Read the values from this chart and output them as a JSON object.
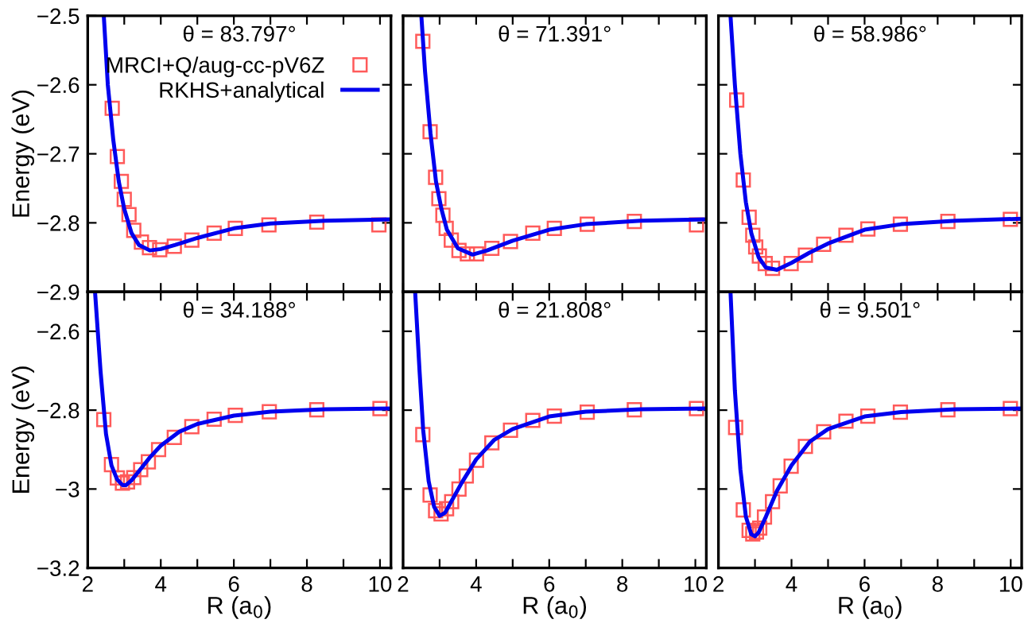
{
  "chart_data": [
    {
      "type": "line",
      "title": "θ = 83.797°",
      "ylabel": "Energy (eV)",
      "xlim": [
        2,
        10.3
      ],
      "ylim": [
        -2.9,
        -2.5
      ],
      "xticks": [
        2,
        {
          "value": 3,
          "label": null
        },
        4,
        {
          "value": 5,
          "label": null
        },
        6,
        {
          "value": 7,
          "label": null
        },
        8,
        {
          "value": 9,
          "label": null
        },
        10
      ],
      "yticks": [
        -2.9,
        -2.8,
        -2.7,
        -2.6,
        -2.5
      ],
      "tick_labels": "y",
      "legend": "top right",
      "grid": false,
      "series": [
        {
          "name": "MRCI+Q/aug-cc-pV6Z",
          "type": "scatter",
          "marker": "square",
          "color": "#ff5a5a",
          "x": [
            2.67,
            2.81,
            2.92,
            3.0,
            3.13,
            3.26,
            3.47,
            3.69,
            3.97,
            4.37,
            4.85,
            5.46,
            6.04,
            6.96,
            8.27,
            9.97
          ],
          "values": [
            -2.634,
            -2.704,
            -2.74,
            -2.766,
            -2.788,
            -2.811,
            -2.828,
            -2.836,
            -2.839,
            -2.834,
            -2.825,
            -2.815,
            -2.808,
            -2.803,
            -2.799,
            -2.803
          ]
        },
        {
          "name": "RKHS+analytical",
          "type": "line",
          "color": "#0000ee",
          "x": [
            2.44,
            2.55,
            2.7,
            2.85,
            3.0,
            3.2,
            3.4,
            3.7,
            4.0,
            4.4,
            5.0,
            6.0,
            7.0,
            8.5,
            10.3
          ],
          "values": [
            -2.5,
            -2.6,
            -2.68,
            -2.74,
            -2.78,
            -2.815,
            -2.832,
            -2.84,
            -2.838,
            -2.832,
            -2.822,
            -2.808,
            -2.801,
            -2.797,
            -2.795
          ]
        }
      ]
    },
    {
      "type": "line",
      "title": "θ = 71.391°",
      "xlim": [
        2,
        10.3
      ],
      "ylim": [
        -2.9,
        -2.5
      ],
      "xticks": [
        2,
        {
          "value": 3,
          "label": null
        },
        4,
        {
          "value": 5,
          "label": null
        },
        6,
        {
          "value": 7,
          "label": null
        },
        8,
        {
          "value": 9,
          "label": null
        },
        10
      ],
      "yticks": [
        -2.9,
        -2.8,
        -2.7,
        -2.6,
        -2.5
      ],
      "tick_labels": false,
      "grid": false,
      "series": [
        {
          "type": "scatter",
          "marker": "square",
          "color": "#ff5a5a",
          "x": [
            2.54,
            2.74,
            2.89,
            2.98,
            3.09,
            3.18,
            3.32,
            3.53,
            3.76,
            4.01,
            4.43,
            4.94,
            5.55,
            6.14,
            7.04,
            8.33,
            10.03
          ],
          "values": [
            -2.537,
            -2.668,
            -2.734,
            -2.765,
            -2.789,
            -2.808,
            -2.825,
            -2.84,
            -2.845,
            -2.845,
            -2.837,
            -2.827,
            -2.815,
            -2.808,
            -2.802,
            -2.798,
            -2.803
          ]
        },
        {
          "type": "line",
          "color": "#0000ee",
          "x": [
            2.5,
            2.6,
            2.75,
            2.9,
            3.05,
            3.2,
            3.5,
            3.9,
            4.3,
            5.0,
            6.0,
            7.0,
            8.5,
            10.3
          ],
          "values": [
            -2.5,
            -2.58,
            -2.67,
            -2.74,
            -2.78,
            -2.81,
            -2.837,
            -2.846,
            -2.84,
            -2.826,
            -2.81,
            -2.802,
            -2.797,
            -2.795
          ]
        }
      ]
    },
    {
      "type": "line",
      "title": "θ = 58.986°",
      "xlim": [
        2,
        10.3
      ],
      "ylim": [
        -2.9,
        -2.5
      ],
      "xticks": [
        2,
        {
          "value": 3,
          "label": null
        },
        4,
        {
          "value": 5,
          "label": null
        },
        6,
        {
          "value": 7,
          "label": null
        },
        8,
        {
          "value": 9,
          "label": null
        },
        10
      ],
      "yticks": [
        -2.9,
        -2.8,
        -2.7,
        -2.6,
        -2.5
      ],
      "tick_labels": false,
      "grid": false,
      "series": [
        {
          "type": "scatter",
          "marker": "square",
          "color": "#ff5a5a",
          "x": [
            2.5,
            2.68,
            2.84,
            2.94,
            3.02,
            3.12,
            3.28,
            3.48,
            3.99,
            4.38,
            4.88,
            5.49,
            6.09,
            6.98,
            8.28,
            9.99
          ],
          "values": [
            -2.622,
            -2.738,
            -2.792,
            -2.818,
            -2.835,
            -2.848,
            -2.859,
            -2.866,
            -2.859,
            -2.847,
            -2.831,
            -2.818,
            -2.809,
            -2.802,
            -2.798,
            -2.795
          ]
        },
        {
          "type": "line",
          "color": "#0000ee",
          "x": [
            2.33,
            2.45,
            2.6,
            2.75,
            2.9,
            3.1,
            3.3,
            3.6,
            4.0,
            4.5,
            5.0,
            6.0,
            7.0,
            8.5,
            10.3
          ],
          "values": [
            -2.5,
            -2.6,
            -2.7,
            -2.77,
            -2.815,
            -2.85,
            -2.865,
            -2.868,
            -2.858,
            -2.843,
            -2.83,
            -2.81,
            -2.802,
            -2.797,
            -2.794
          ]
        }
      ]
    },
    {
      "type": "line",
      "title": "θ = 34.188°",
      "xlabel": "R (a$_{0}$)",
      "ylabel": "Energy (eV)",
      "xlim": [
        2,
        10.3
      ],
      "ylim": [
        -3.2,
        -2.5
      ],
      "xticks": [
        2,
        {
          "value": 3,
          "label": null
        },
        4,
        {
          "value": 5,
          "label": null
        },
        6,
        {
          "value": 7,
          "label": null
        },
        8,
        {
          "value": 9,
          "label": null
        },
        10
      ],
      "yticks": [
        -3.2,
        -3,
        -2.8,
        -2.6
      ],
      "grid": false,
      "series": [
        {
          "type": "scatter",
          "marker": "square",
          "color": "#ff5a5a",
          "x": [
            2.44,
            2.65,
            2.81,
            2.95,
            3.09,
            3.26,
            3.45,
            3.66,
            3.94,
            4.37,
            4.85,
            5.46,
            6.04,
            6.97,
            8.27,
            10.0
          ],
          "values": [
            -2.824,
            -2.938,
            -2.972,
            -2.985,
            -2.982,
            -2.971,
            -2.951,
            -2.931,
            -2.9,
            -2.869,
            -2.842,
            -2.823,
            -2.813,
            -2.804,
            -2.799,
            -2.796
          ]
        },
        {
          "type": "line",
          "color": "#0000ee",
          "x": [
            2.2,
            2.35,
            2.5,
            2.65,
            2.8,
            2.95,
            3.05,
            3.2,
            3.4,
            3.7,
            4.0,
            4.5,
            5.0,
            6.0,
            7.0,
            8.5,
            10.3
          ],
          "values": [
            -2.5,
            -2.7,
            -2.86,
            -2.94,
            -2.975,
            -2.99,
            -2.99,
            -2.978,
            -2.955,
            -2.92,
            -2.89,
            -2.855,
            -2.835,
            -2.814,
            -2.804,
            -2.798,
            -2.796
          ]
        }
      ]
    },
    {
      "type": "line",
      "title": "θ = 21.808°",
      "xlabel": "R (a$_{0}$)",
      "xlim": [
        2,
        10.3
      ],
      "ylim": [
        -3.2,
        -2.5
      ],
      "xticks": [
        2,
        {
          "value": 3,
          "label": null
        },
        4,
        {
          "value": 5,
          "label": null
        },
        6,
        {
          "value": 7,
          "label": null
        },
        8,
        {
          "value": 9,
          "label": null
        },
        10
      ],
      "yticks": [
        -3.2,
        -3,
        -2.8,
        -2.6
      ],
      "tick_labels": "x",
      "grid": false,
      "series": [
        {
          "type": "scatter",
          "marker": "square",
          "color": "#ff5a5a",
          "x": [
            2.54,
            2.74,
            2.89,
            3.04,
            3.19,
            3.33,
            3.53,
            3.73,
            4.01,
            4.43,
            4.94,
            5.55,
            6.14,
            7.04,
            8.33,
            10.03
          ],
          "values": [
            -2.862,
            -3.015,
            -3.055,
            -3.063,
            -3.05,
            -3.032,
            -3.0,
            -2.967,
            -2.927,
            -2.883,
            -2.851,
            -2.826,
            -2.815,
            -2.805,
            -2.799,
            -2.796
          ]
        },
        {
          "type": "line",
          "color": "#0000ee",
          "x": [
            2.33,
            2.45,
            2.55,
            2.7,
            2.85,
            3.0,
            3.15,
            3.3,
            3.6,
            4.0,
            4.5,
            5.0,
            6.0,
            7.0,
            8.5,
            10.3
          ],
          "values": [
            -2.5,
            -2.7,
            -2.85,
            -2.98,
            -3.045,
            -3.068,
            -3.06,
            -3.035,
            -2.985,
            -2.925,
            -2.875,
            -2.848,
            -2.816,
            -2.804,
            -2.798,
            -2.796
          ]
        }
      ]
    },
    {
      "type": "line",
      "title": "θ = 9.501°",
      "xlabel": "R (a$_{0}$)",
      "xlim": [
        2,
        10.3
      ],
      "ylim": [
        -3.2,
        -2.5
      ],
      "xticks": [
        2,
        {
          "value": 3,
          "label": null
        },
        4,
        {
          "value": 5,
          "label": null
        },
        6,
        {
          "value": 7,
          "label": null
        },
        8,
        {
          "value": 9,
          "label": null
        },
        10
      ],
      "yticks": [
        -3.2,
        -3,
        -2.8,
        -2.6
      ],
      "tick_labels": "x",
      "grid": false,
      "series": [
        {
          "type": "scatter",
          "marker": "square",
          "color": "#ff5a5a",
          "x": [
            2.47,
            2.68,
            2.84,
            2.94,
            3.04,
            3.13,
            3.26,
            3.48,
            3.69,
            3.99,
            4.38,
            4.88,
            5.49,
            6.09,
            6.98,
            8.28,
            9.99
          ],
          "values": [
            -2.844,
            -3.053,
            -3.105,
            -3.114,
            -3.109,
            -3.099,
            -3.071,
            -3.032,
            -2.992,
            -2.942,
            -2.892,
            -2.855,
            -2.828,
            -2.815,
            -2.805,
            -2.799,
            -2.796
          ]
        },
        {
          "type": "line",
          "color": "#0000ee",
          "x": [
            2.33,
            2.45,
            2.6,
            2.75,
            2.9,
            3.0,
            3.1,
            3.3,
            3.6,
            4.0,
            4.5,
            5.0,
            6.0,
            7.0,
            8.5,
            10.3
          ],
          "values": [
            -2.5,
            -2.75,
            -2.95,
            -3.07,
            -3.115,
            -3.12,
            -3.11,
            -3.07,
            -3.005,
            -2.94,
            -2.88,
            -2.848,
            -2.816,
            -2.805,
            -2.798,
            -2.796
          ]
        }
      ]
    }
  ]
}
